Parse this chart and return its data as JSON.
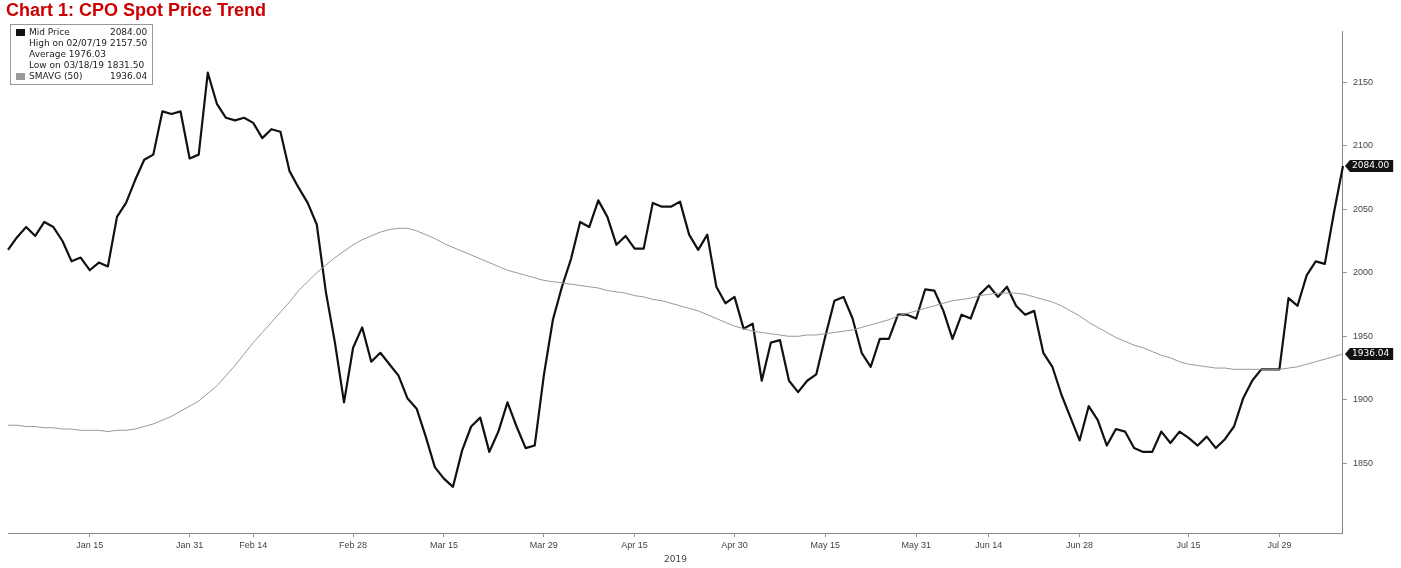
{
  "chart_data": {
    "type": "line",
    "title": "Chart 1: CPO Spot Price Trend",
    "xlabel": "2019",
    "categories": [
      null,
      null,
      null,
      null,
      null,
      null,
      null,
      null,
      null,
      "Jan 15",
      null,
      null,
      null,
      null,
      null,
      null,
      null,
      null,
      null,
      null,
      "Jan 31",
      null,
      null,
      null,
      null,
      null,
      null,
      "Feb 14",
      null,
      null,
      null,
      null,
      null,
      null,
      null,
      null,
      null,
      null,
      "Feb 28",
      null,
      null,
      null,
      null,
      null,
      null,
      null,
      null,
      null,
      "Mar 15",
      null,
      null,
      null,
      null,
      null,
      null,
      null,
      null,
      null,
      null,
      "Mar 29",
      null,
      null,
      null,
      null,
      null,
      null,
      null,
      null,
      null,
      "Apr 15",
      null,
      null,
      null,
      null,
      null,
      null,
      null,
      null,
      null,
      null,
      "Apr 30",
      null,
      null,
      null,
      null,
      null,
      null,
      null,
      null,
      null,
      "May 15",
      null,
      null,
      null,
      null,
      null,
      null,
      null,
      null,
      null,
      "May 31",
      null,
      null,
      null,
      null,
      null,
      null,
      null,
      "Jun 14",
      null,
      null,
      null,
      null,
      null,
      null,
      null,
      null,
      null,
      "Jun 28",
      null,
      null,
      null,
      null,
      null,
      null,
      null,
      null,
      null,
      null,
      null,
      "Jul 15",
      null,
      null,
      null,
      null,
      null,
      null,
      null,
      null,
      null,
      "Jul 29",
      null,
      null,
      null,
      null,
      null,
      null,
      null
    ],
    "ylim": [
      1795,
      2190
    ],
    "yticks": [
      1850,
      1900,
      1950,
      2000,
      2050,
      2100,
      2150
    ],
    "grid": false,
    "legend": "top left",
    "marker": "none",
    "series": [
      {
        "name": "Mid Price",
        "color": "#111111",
        "values": [
          2018,
          2028,
          2036,
          2029,
          2040,
          2036,
          2025,
          2009,
          2012,
          2002,
          2008,
          2005,
          2044,
          2055,
          2073,
          2089,
          2093,
          2127,
          2125,
          2127,
          2090,
          2093,
          2157.5,
          2133,
          2122,
          2120,
          2122,
          2118,
          2106,
          2113,
          2111,
          2080,
          2067,
          2055,
          2038,
          1985,
          1945,
          1898,
          1941,
          1957,
          1930,
          1937,
          1928,
          1919,
          1901,
          1893,
          1871,
          1847,
          1838,
          1831.5,
          1860,
          1879,
          1886,
          1859,
          1875,
          1898,
          1879,
          1862,
          1864,
          1919,
          1963,
          1989,
          2011,
          2040,
          2036,
          2057,
          2044,
          2022,
          2029,
          2019,
          2019,
          2055,
          2052,
          2052,
          2056,
          2030,
          2018,
          2030,
          1989,
          1976,
          1981,
          1956,
          1960,
          1915,
          1945,
          1947,
          1915,
          1906,
          1915,
          1920,
          1950,
          1978,
          1981,
          1964,
          1937,
          1926,
          1948,
          1948,
          1967,
          1967,
          1964,
          1987,
          1986,
          1970,
          1948,
          1967,
          1964,
          1983,
          1990,
          1981,
          1989,
          1974,
          1967,
          1970,
          1937,
          1926,
          1904,
          1886,
          1868,
          1895,
          1884,
          1864,
          1877,
          1875,
          1862,
          1859,
          1859,
          1875,
          1866,
          1875,
          1870,
          1864,
          1871,
          1862,
          1869,
          1879,
          1901,
          1915,
          1924,
          1924,
          1924,
          1980,
          1974,
          1998,
          2009,
          2007,
          2047,
          2084
        ]
      },
      {
        "name": "SMAVG (50)",
        "color": "#999999",
        "values": [
          1880,
          1880,
          1879,
          1879,
          1878,
          1878,
          1877,
          1877,
          1876,
          1876,
          1876,
          1875,
          1876,
          1876,
          1877,
          1879,
          1881,
          1884,
          1887,
          1891,
          1895,
          1899,
          1905,
          1911,
          1919,
          1927,
          1936,
          1945,
          1953,
          1961,
          1969,
          1977,
          1986,
          1993,
          2000,
          2006,
          2012,
          2017,
          2022,
          2026,
          2029,
          2032,
          2034,
          2035,
          2035,
          2033,
          2030,
          2027,
          2023,
          2020,
          2017,
          2014,
          2011,
          2008,
          2005,
          2002,
          2000,
          1998,
          1996,
          1994,
          1993,
          1992,
          1991,
          1990,
          1989,
          1988,
          1986,
          1985,
          1984,
          1982,
          1981,
          1979,
          1978,
          1976,
          1974,
          1972,
          1970,
          1967,
          1964,
          1961,
          1958,
          1956,
          1954,
          1953,
          1952,
          1951,
          1950,
          1950,
          1951,
          1951,
          1952,
          1953,
          1954,
          1955,
          1957,
          1959,
          1961,
          1963,
          1966,
          1968,
          1970,
          1972,
          1974,
          1976,
          1978,
          1979,
          1980,
          1982,
          1983,
          1984,
          1984,
          1984,
          1983,
          1981,
          1979,
          1977,
          1974,
          1970,
          1966,
          1961,
          1957,
          1953,
          1949,
          1946,
          1943,
          1941,
          1938,
          1935,
          1933,
          1930,
          1928,
          1927,
          1926,
          1925,
          1925,
          1924,
          1924,
          1924,
          1924,
          1924,
          1924,
          1925,
          1926,
          1928,
          1930,
          1932,
          1934,
          1936.04
        ]
      }
    ],
    "annotations": [
      "2084.00",
      "1936.04",
      "High on 02/07/19 2157.50",
      "Average 1976.03",
      "Low on 03/18/19 1831.50"
    ]
  }
}
